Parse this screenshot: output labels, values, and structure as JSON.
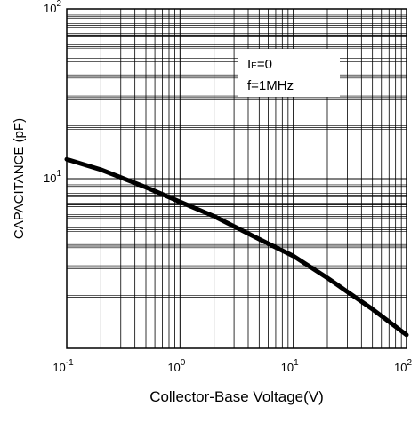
{
  "chart_data": {
    "type": "line",
    "xlabel": "Collector-Base Voltage(V)",
    "ylabel": "CAPACITANCE (pF)",
    "x_scale": "log",
    "y_scale": "log",
    "xlim": [
      0.1,
      100
    ],
    "ylim": [
      1,
      100
    ],
    "grid": true,
    "x_ticks": [
      {
        "base": "10",
        "exp": "-1"
      },
      {
        "base": "10",
        "exp": "0"
      },
      {
        "base": "10",
        "exp": "1"
      },
      {
        "base": "10",
        "exp": "2"
      }
    ],
    "y_ticks": [
      {
        "value": 10,
        "base": "10",
        "exp": "1"
      },
      {
        "value": 100,
        "base": "10",
        "exp": "2"
      }
    ],
    "annotation": {
      "line1_main": "I",
      "line1_sub": "E",
      "line1_rest": "=0",
      "line2": "f=1MHz"
    },
    "series": [
      {
        "x": [
          0.1,
          0.2,
          0.5,
          1,
          2,
          5,
          10,
          20,
          50,
          100
        ],
        "y": [
          13,
          11.3,
          8.9,
          7.3,
          6,
          4.4,
          3.5,
          2.6,
          1.7,
          1.2
        ]
      }
    ]
  }
}
